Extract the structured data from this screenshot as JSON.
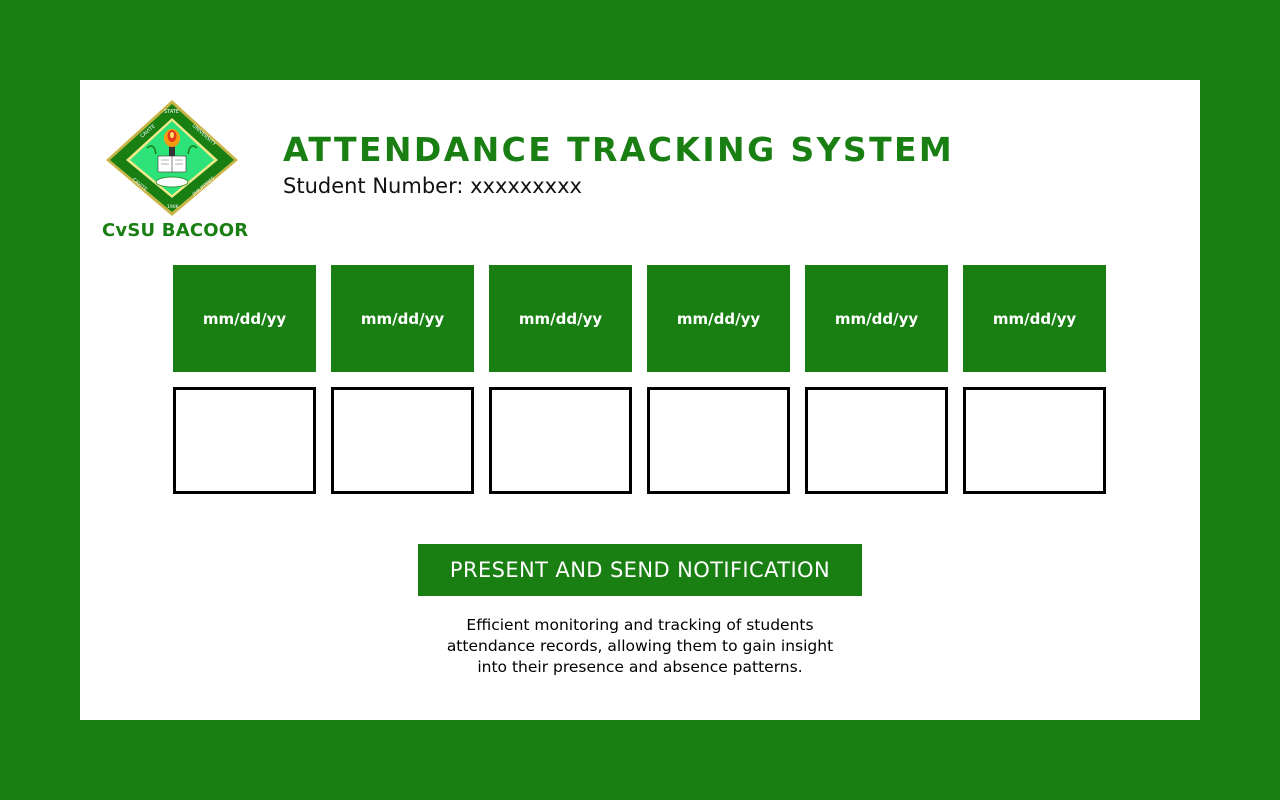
{
  "colors": {
    "brand_green": "#197f12",
    "card_background": "#ffffff",
    "box_border": "#000000"
  },
  "logo": {
    "icon": "cvsu-seal-icon",
    "seal_text": "CAVITE STATE UNIVERSITY · CAVITE · PHILIPPINES · 1906",
    "caption": "CvSU BACOOR"
  },
  "header": {
    "title": "ATTENDANCE TRACKING SYSTEM",
    "student_number": "Student Number: xxxxxxxxx"
  },
  "attendance": {
    "dates": [
      "mm/dd/yy",
      "mm/dd/yy",
      "mm/dd/yy",
      "mm/dd/yy",
      "mm/dd/yy",
      "mm/dd/yy"
    ],
    "marks": [
      "",
      "",
      "",
      "",
      "",
      ""
    ]
  },
  "action": {
    "button_label": "PRESENT AND SEND NOTIFICATION"
  },
  "description": {
    "lines": [
      "Efficient monitoring and tracking of students",
      "attendance records, allowing them to gain insight",
      "into their presence and absence patterns."
    ]
  }
}
